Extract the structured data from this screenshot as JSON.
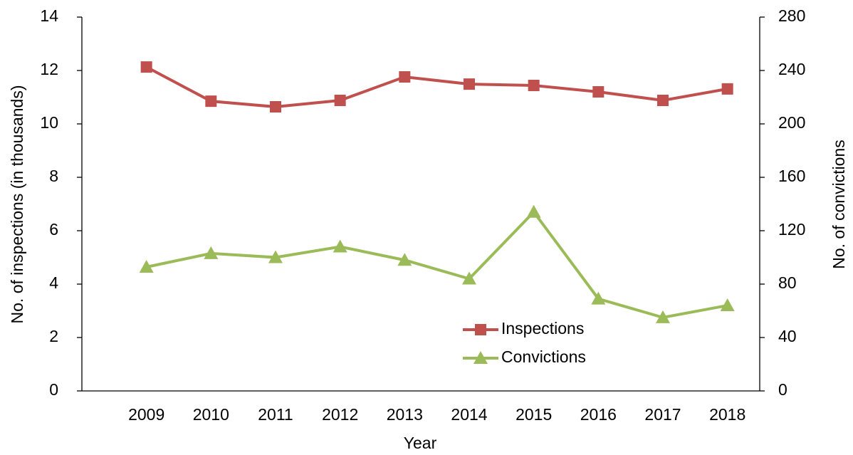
{
  "chart_data": {
    "type": "line",
    "xlabel": "Year",
    "ylabel": "No. of inspections (in thousands)",
    "y2label": "No. of convictions",
    "categories": [
      "2009",
      "2010",
      "2011",
      "2012",
      "2013",
      "2014",
      "2015",
      "2016",
      "2017",
      "2018"
    ],
    "series": [
      {
        "name": "Inspections",
        "color": "#c0504d",
        "marker": "square",
        "values": [
          12.13,
          10.85,
          10.64,
          10.88,
          11.76,
          11.49,
          11.44,
          11.2,
          10.88,
          11.31
        ]
      },
      {
        "name": "Convictions",
        "color": "#9bbb59",
        "marker": "triangle",
        "axis": "y2",
        "values": [
          92.8,
          103,
          100,
          108,
          98,
          84,
          134,
          69,
          55,
          64
        ]
      }
    ],
    "ylim": [
      0,
      14
    ],
    "yticks": [
      0,
      2,
      4,
      6,
      8,
      10,
      12,
      14
    ],
    "y2lim": [
      0,
      280
    ],
    "y2ticks": [
      0,
      40,
      80,
      120,
      160,
      200,
      240,
      280
    ],
    "grid": false,
    "legend": "lower right"
  }
}
